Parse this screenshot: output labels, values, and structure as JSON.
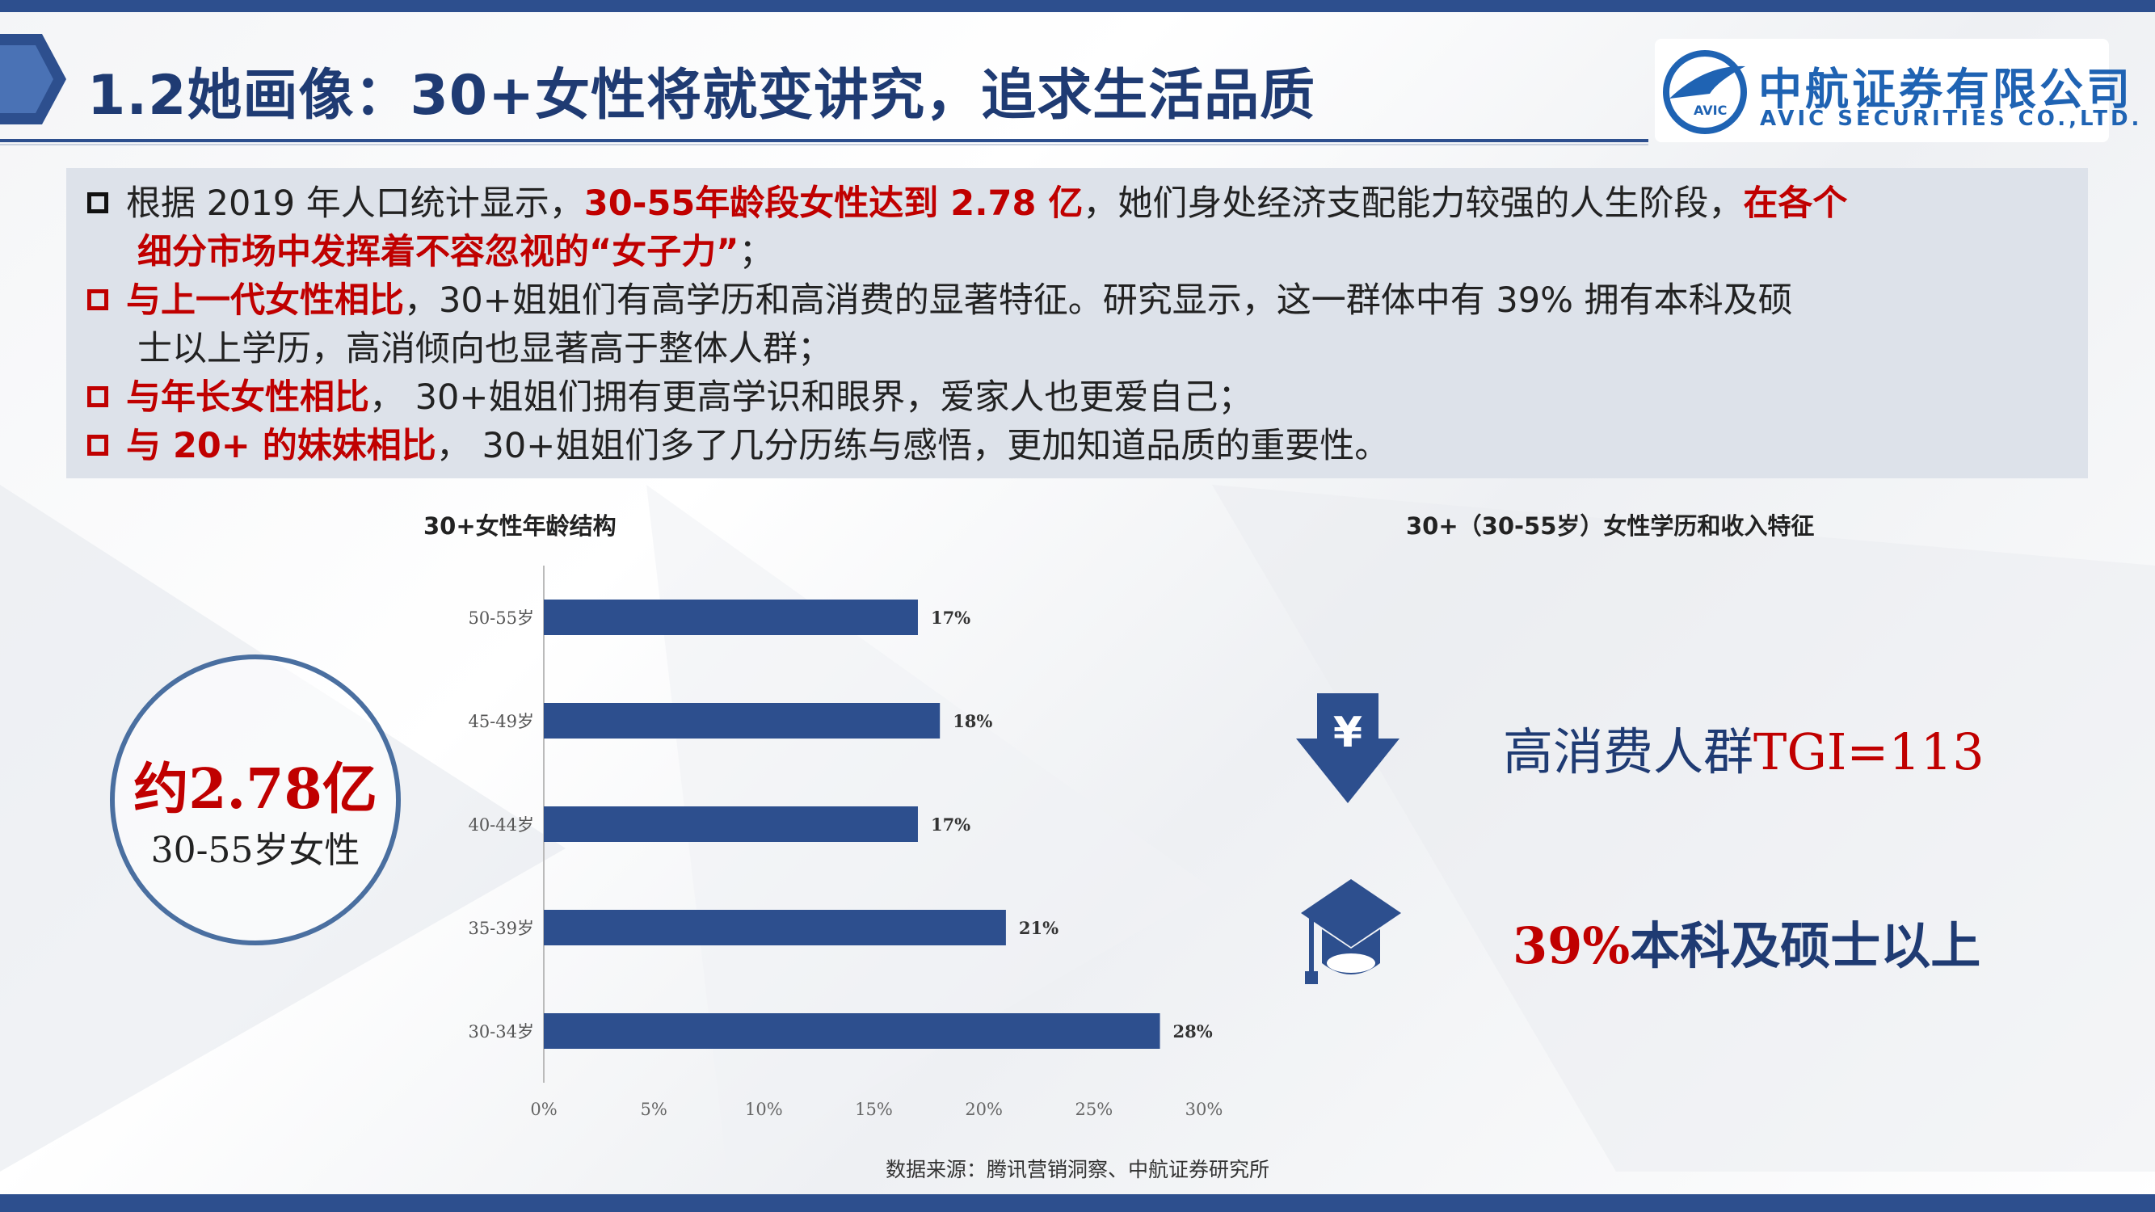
{
  "header": {
    "title": "1.2她画像：30+女性将就变讲究，追求生活品质",
    "logo_cn": "中航证券有限公司",
    "logo_en": "AVIC SECURITIES CO.,LTD.",
    "logo_emblem_text": "AVIC",
    "colors": {
      "brand": "#2d4f8e",
      "accent_red": "#c00000"
    }
  },
  "bullets": [
    {
      "marker": "black",
      "parts": [
        {
          "text": "根据 2019 年人口统计显示，",
          "style": "normal"
        },
        {
          "text": "30-55年龄段女性达到 2.78 亿",
          "style": "red"
        },
        {
          "text": "，她们身处经济支配能力较强的人生阶段，",
          "style": "normal"
        },
        {
          "text": "在各个",
          "style": "red"
        }
      ],
      "line2": [
        {
          "text": "细分市场中发挥着不容忽视的“女子力”",
          "style": "red"
        },
        {
          "text": "；",
          "style": "normal"
        }
      ]
    },
    {
      "marker": "red",
      "parts": [
        {
          "text": "与上一代女性相比",
          "style": "red"
        },
        {
          "text": "，30+姐姐们有高学历和高消费的显著特征。研究显示，这一群体中有 39% 拥有本科及硕",
          "style": "normal"
        }
      ],
      "line2": [
        {
          "text": "士以上学历，高消倾向也显著高于整体人群；",
          "style": "normal"
        }
      ]
    },
    {
      "marker": "red",
      "parts": [
        {
          "text": "与年长女性相比",
          "style": "red"
        },
        {
          "text": "， 30+姐姐们拥有更高学识和眼界，爱家人也更爱自己；",
          "style": "normal"
        }
      ]
    },
    {
      "marker": "red",
      "parts": [
        {
          "text": "与 20+ 的妹妹相比",
          "style": "red"
        },
        {
          "text": "， 30+姐姐们多了几分历练与感悟，更加知道品质的重要性。",
          "style": "normal"
        }
      ]
    }
  ],
  "circle": {
    "big": "约2.78亿",
    "small": "30-55岁女性"
  },
  "chart_data": {
    "type": "bar",
    "orientation": "horizontal",
    "title": "30+女性年龄结构",
    "categories": [
      "50-55岁",
      "45-49岁",
      "40-44岁",
      "35-39岁",
      "30-34岁"
    ],
    "values": [
      17,
      18,
      17,
      21,
      28
    ],
    "data_labels": [
      "17%",
      "18%",
      "17%",
      "21%",
      "28%"
    ],
    "xlim": [
      0,
      30
    ],
    "xticks": [
      "0%",
      "5%",
      "10%",
      "15%",
      "20%",
      "25%",
      "30%"
    ],
    "xtick_values": [
      0,
      5,
      10,
      15,
      20,
      25,
      30
    ],
    "grid": false,
    "bar_color": "#2d4f8e"
  },
  "features": {
    "title": "30+（30-55岁）女性学历和收入特征",
    "item1_label": "高消费人群",
    "item1_value": "TGI=113",
    "item1_icon": "yen-down-arrow-icon",
    "item2_value": "39%",
    "item2_label": "本科及硕士以上",
    "item2_icon": "graduation-cap-icon"
  },
  "source": "数据来源：腾讯营销洞察、中航证券研究所"
}
